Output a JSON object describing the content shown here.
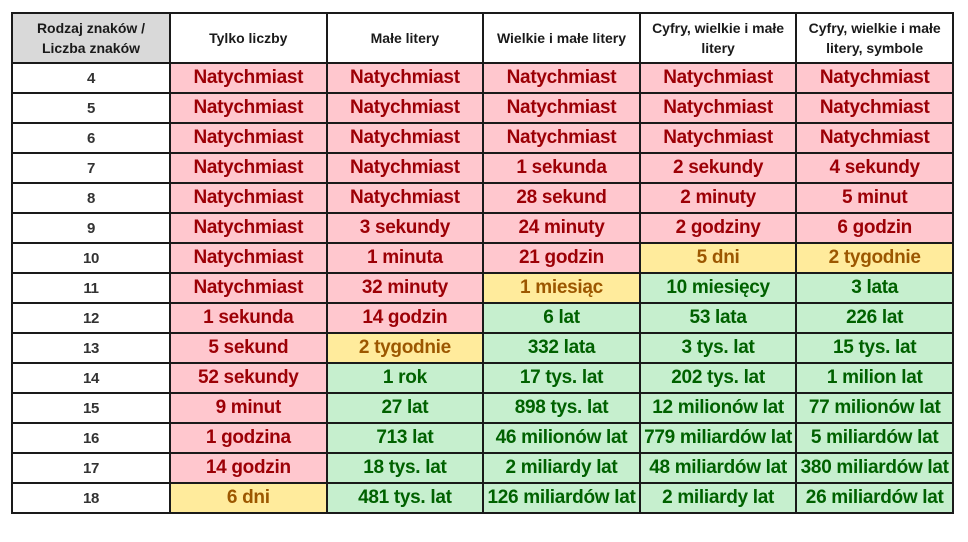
{
  "table": {
    "corner_header": [
      "Rodzaj znaków /",
      "Liczba znaków"
    ],
    "columns": [
      {
        "label": "Tylko liczby"
      },
      {
        "label": "Małe litery"
      },
      {
        "label": "Wielkie i małe litery"
      },
      {
        "label": "Cyfry, wielkie i małe litery"
      },
      {
        "label": "Cyfry, wielkie i małe litery, symbole"
      }
    ],
    "colors": {
      "red_fill": "#ffc7ce",
      "red_text": "#9c0006",
      "yellow_fill": "#ffeb9c",
      "yellow_text": "#9c5700",
      "green_fill": "#c6efce",
      "green_text": "#006100",
      "header_fill": "#d9d9d9"
    },
    "rows": [
      {
        "length": "4",
        "cells": [
          {
            "text": "Natychmiast",
            "status": "red"
          },
          {
            "text": "Natychmiast",
            "status": "red"
          },
          {
            "text": "Natychmiast",
            "status": "red"
          },
          {
            "text": "Natychmiast",
            "status": "red"
          },
          {
            "text": "Natychmiast",
            "status": "red"
          }
        ]
      },
      {
        "length": "5",
        "cells": [
          {
            "text": "Natychmiast",
            "status": "red"
          },
          {
            "text": "Natychmiast",
            "status": "red"
          },
          {
            "text": "Natychmiast",
            "status": "red"
          },
          {
            "text": "Natychmiast",
            "status": "red"
          },
          {
            "text": "Natychmiast",
            "status": "red"
          }
        ]
      },
      {
        "length": "6",
        "cells": [
          {
            "text": "Natychmiast",
            "status": "red"
          },
          {
            "text": "Natychmiast",
            "status": "red"
          },
          {
            "text": "Natychmiast",
            "status": "red"
          },
          {
            "text": "Natychmiast",
            "status": "red"
          },
          {
            "text": "Natychmiast",
            "status": "red"
          }
        ]
      },
      {
        "length": "7",
        "cells": [
          {
            "text": "Natychmiast",
            "status": "red"
          },
          {
            "text": "Natychmiast",
            "status": "red"
          },
          {
            "text": "1 sekunda",
            "status": "red"
          },
          {
            "text": "2 sekundy",
            "status": "red"
          },
          {
            "text": "4 sekundy",
            "status": "red"
          }
        ]
      },
      {
        "length": "8",
        "cells": [
          {
            "text": "Natychmiast",
            "status": "red"
          },
          {
            "text": "Natychmiast",
            "status": "red"
          },
          {
            "text": "28 sekund",
            "status": "red"
          },
          {
            "text": "2 minuty",
            "status": "red"
          },
          {
            "text": "5 minut",
            "status": "red"
          }
        ]
      },
      {
        "length": "9",
        "cells": [
          {
            "text": "Natychmiast",
            "status": "red"
          },
          {
            "text": "3 sekundy",
            "status": "red"
          },
          {
            "text": "24 minuty",
            "status": "red"
          },
          {
            "text": "2 godziny",
            "status": "red"
          },
          {
            "text": "6 godzin",
            "status": "red"
          }
        ]
      },
      {
        "length": "10",
        "cells": [
          {
            "text": "Natychmiast",
            "status": "red"
          },
          {
            "text": "1 minuta",
            "status": "red"
          },
          {
            "text": "21 godzin",
            "status": "red"
          },
          {
            "text": "5 dni",
            "status": "yellow"
          },
          {
            "text": "2 tygodnie",
            "status": "yellow"
          }
        ]
      },
      {
        "length": "11",
        "cells": [
          {
            "text": "Natychmiast",
            "status": "red"
          },
          {
            "text": "32 minuty",
            "status": "red"
          },
          {
            "text": "1 miesiąc",
            "status": "yellow"
          },
          {
            "text": "10 miesięcy",
            "status": "green"
          },
          {
            "text": "3 lata",
            "status": "green"
          }
        ]
      },
      {
        "length": "12",
        "cells": [
          {
            "text": "1 sekunda",
            "status": "red"
          },
          {
            "text": "14 godzin",
            "status": "red"
          },
          {
            "text": "6 lat",
            "status": "green"
          },
          {
            "text": "53 lata",
            "status": "green"
          },
          {
            "text": "226 lat",
            "status": "green"
          }
        ]
      },
      {
        "length": "13",
        "cells": [
          {
            "text": "5 sekund",
            "status": "red"
          },
          {
            "text": "2 tygodnie",
            "status": "yellow"
          },
          {
            "text": "332 lata",
            "status": "green"
          },
          {
            "text": "3 tys. lat",
            "status": "green"
          },
          {
            "text": "15 tys. lat",
            "status": "green"
          }
        ]
      },
      {
        "length": "14",
        "cells": [
          {
            "text": "52 sekundy",
            "status": "red"
          },
          {
            "text": "1 rok",
            "status": "green"
          },
          {
            "text": "17 tys. lat",
            "status": "green"
          },
          {
            "text": "202 tys. lat",
            "status": "green"
          },
          {
            "text": "1 milion lat",
            "status": "green"
          }
        ]
      },
      {
        "length": "15",
        "cells": [
          {
            "text": "9 minut",
            "status": "red"
          },
          {
            "text": "27 lat",
            "status": "green"
          },
          {
            "text": "898 tys. lat",
            "status": "green"
          },
          {
            "text": "12 milionów lat",
            "status": "green"
          },
          {
            "text": "77 milionów lat",
            "status": "green"
          }
        ]
      },
      {
        "length": "16",
        "cells": [
          {
            "text": "1 godzina",
            "status": "red"
          },
          {
            "text": "713 lat",
            "status": "green"
          },
          {
            "text": "46 milionów lat",
            "status": "green"
          },
          {
            "text": "779 miliardów lat",
            "status": "green"
          },
          {
            "text": "5 miliardów lat",
            "status": "green"
          }
        ]
      },
      {
        "length": "17",
        "cells": [
          {
            "text": "14 godzin",
            "status": "red"
          },
          {
            "text": "18 tys. lat",
            "status": "green"
          },
          {
            "text": "2 miliardy lat",
            "status": "green"
          },
          {
            "text": "48 miliardów lat",
            "status": "green"
          },
          {
            "text": "380 miliardów lat",
            "status": "green"
          }
        ]
      },
      {
        "length": "18",
        "cells": [
          {
            "text": "6 dni",
            "status": "yellow"
          },
          {
            "text": "481 tys. lat",
            "status": "green"
          },
          {
            "text": "126 miliardów lat",
            "status": "green"
          },
          {
            "text": "2 miliardy lat",
            "status": "green"
          },
          {
            "text": "26 miliardów lat",
            "status": "green"
          }
        ]
      }
    ]
  }
}
